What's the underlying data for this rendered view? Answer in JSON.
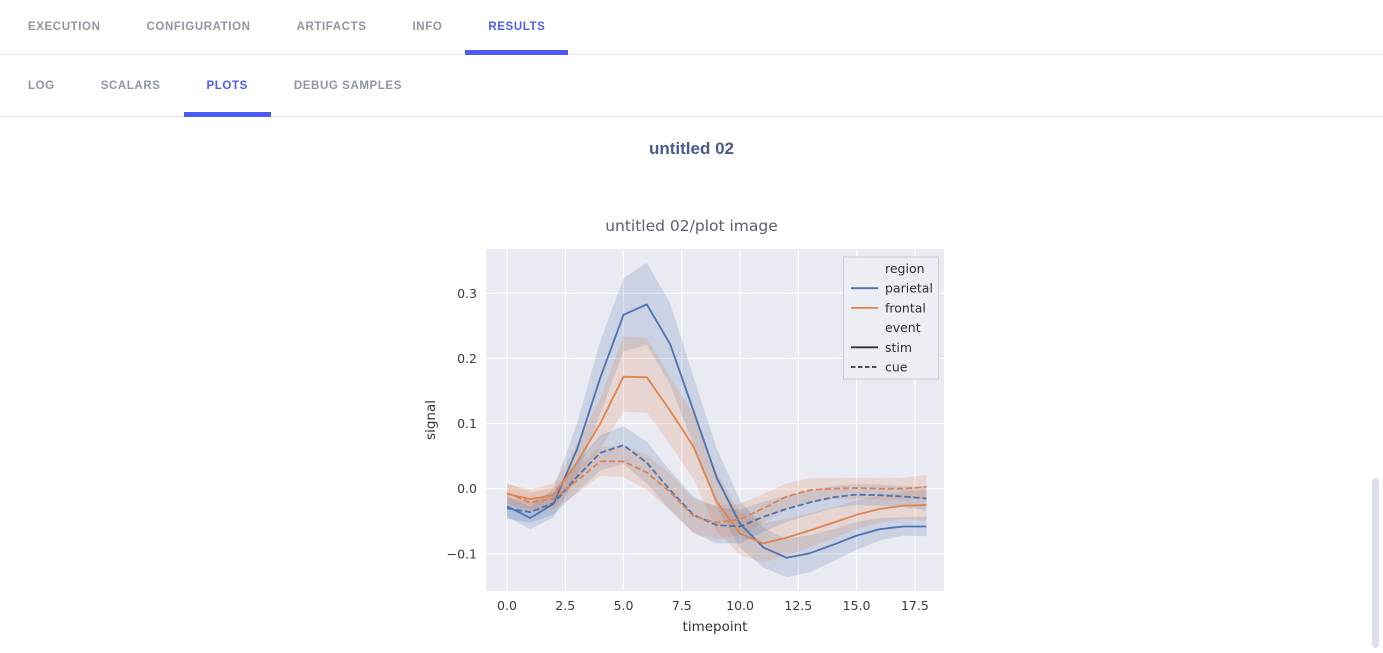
{
  "top_nav": {
    "active": "RESULTS",
    "tabs": [
      {
        "label": "EXECUTION"
      },
      {
        "label": "CONFIGURATION"
      },
      {
        "label": "ARTIFACTS"
      },
      {
        "label": "INFO"
      },
      {
        "label": "RESULTS"
      }
    ]
  },
  "sub_nav": {
    "active": "PLOTS",
    "tabs": [
      {
        "label": "LOG"
      },
      {
        "label": "SCALARS"
      },
      {
        "label": "PLOTS"
      },
      {
        "label": "DEBUG SAMPLES"
      }
    ]
  },
  "page": {
    "plot_group_title": "untitled 02"
  },
  "colors": {
    "accent": "#4c5df3",
    "inactive_tab": "#8f95a2",
    "group_title": "#4b5a8e",
    "chart_title": "#5a5f69",
    "tick_text": "#3a3a3a",
    "axis_text": "#333333",
    "plot_bg": "#eaeaf2",
    "grid": "#ffffff",
    "legend_bg": "#ededf4",
    "legend_border": "#c9cad3",
    "legend_text": "#2f2f2f",
    "blue": "#4c72b0",
    "orange": "#dd8452",
    "dark_line": "#333333",
    "scroll_thumb": "#dce0ee"
  },
  "chart_data": {
    "type": "line",
    "title": "untitled 02/plot image",
    "xlabel": "timepoint",
    "ylabel": "signal",
    "grid": true,
    "legend_position": "upper right",
    "band_alpha": 0.2,
    "xlim": [
      -0.9,
      18.75
    ],
    "ylim": [
      -0.157,
      0.368
    ],
    "xticks": [
      0,
      2.5,
      5,
      7.5,
      10,
      12.5,
      15,
      17.5
    ],
    "xtick_labels": [
      "0.0",
      "2.5",
      "5.0",
      "7.5",
      "10.0",
      "12.5",
      "15.0",
      "17.5"
    ],
    "yticks": [
      -0.1,
      0.0,
      0.1,
      0.2,
      0.3
    ],
    "ytick_labels": [
      "−0.1",
      "0.0",
      "0.1",
      "0.2",
      "0.3"
    ],
    "x": [
      0,
      1,
      2,
      3,
      4,
      5,
      6,
      7,
      8,
      9,
      10,
      11,
      12,
      13,
      14,
      15,
      16,
      17,
      18
    ],
    "series": [
      {
        "name": "parietal-stim",
        "region": "parietal",
        "event": "stim",
        "color": "#4c72b0",
        "dash": false,
        "values": [
          -0.027,
          -0.045,
          -0.023,
          0.06,
          0.17,
          0.267,
          0.283,
          0.222,
          0.12,
          0.017,
          -0.054,
          -0.09,
          -0.106,
          -0.099,
          -0.086,
          -0.072,
          -0.062,
          -0.058,
          -0.058
        ],
        "lo": [
          -0.043,
          -0.062,
          -0.044,
          0.02,
          0.115,
          0.211,
          0.221,
          0.16,
          0.068,
          -0.028,
          -0.091,
          -0.121,
          -0.136,
          -0.128,
          -0.111,
          -0.094,
          -0.079,
          -0.072,
          -0.073
        ],
        "hi": [
          -0.011,
          -0.028,
          0.0,
          0.1,
          0.226,
          0.323,
          0.347,
          0.285,
          0.172,
          0.062,
          -0.018,
          -0.06,
          -0.077,
          -0.071,
          -0.062,
          -0.051,
          -0.045,
          -0.044,
          -0.043
        ]
      },
      {
        "name": "frontal-stim",
        "region": "frontal",
        "event": "stim",
        "color": "#dd8452",
        "dash": false,
        "values": [
          -0.008,
          -0.016,
          -0.01,
          0.04,
          0.1,
          0.172,
          0.171,
          0.12,
          0.065,
          -0.02,
          -0.069,
          -0.084,
          -0.075,
          -0.064,
          -0.052,
          -0.04,
          -0.031,
          -0.026,
          -0.025
        ],
        "lo": [
          -0.023,
          -0.031,
          -0.028,
          0.012,
          0.062,
          0.118,
          0.117,
          0.068,
          0.015,
          -0.065,
          -0.102,
          -0.113,
          -0.103,
          -0.09,
          -0.076,
          -0.062,
          -0.052,
          -0.047,
          -0.049
        ],
        "hi": [
          0.007,
          -0.001,
          0.008,
          0.068,
          0.138,
          0.234,
          0.231,
          0.172,
          0.115,
          0.025,
          -0.036,
          -0.053,
          -0.046,
          -0.038,
          -0.028,
          -0.018,
          -0.01,
          -0.005,
          -0.001
        ]
      },
      {
        "name": "parietal-cue",
        "region": "parietal",
        "event": "cue",
        "color": "#4c72b0",
        "dash": true,
        "values": [
          -0.03,
          -0.036,
          -0.022,
          0.018,
          0.055,
          0.067,
          0.04,
          -0.002,
          -0.04,
          -0.056,
          -0.058,
          -0.043,
          -0.031,
          -0.021,
          -0.013,
          -0.009,
          -0.01,
          -0.012,
          -0.015
        ],
        "lo": [
          -0.046,
          -0.052,
          -0.04,
          -0.005,
          0.028,
          0.038,
          0.008,
          -0.032,
          -0.068,
          -0.084,
          -0.084,
          -0.066,
          -0.051,
          -0.04,
          -0.03,
          -0.025,
          -0.026,
          -0.028,
          -0.033
        ],
        "hi": [
          -0.014,
          -0.02,
          -0.004,
          0.041,
          0.082,
          0.096,
          0.072,
          0.028,
          -0.012,
          -0.028,
          -0.032,
          -0.02,
          -0.011,
          -0.002,
          0.004,
          0.007,
          0.006,
          0.004,
          0.003
        ]
      },
      {
        "name": "frontal-cue",
        "region": "frontal",
        "event": "cue",
        "color": "#dd8452",
        "dash": true,
        "values": [
          -0.007,
          -0.021,
          -0.015,
          0.012,
          0.042,
          0.042,
          0.025,
          -0.005,
          -0.042,
          -0.052,
          -0.047,
          -0.03,
          -0.012,
          -0.002,
          0.0,
          0.001,
          0.0,
          0.0,
          0.003
        ],
        "lo": [
          -0.023,
          -0.036,
          -0.032,
          -0.008,
          0.02,
          0.018,
          -0.002,
          -0.033,
          -0.068,
          -0.078,
          -0.071,
          -0.052,
          -0.032,
          -0.02,
          -0.016,
          -0.015,
          -0.016,
          -0.017,
          -0.015
        ],
        "hi": [
          0.009,
          -0.006,
          0.002,
          0.032,
          0.064,
          0.066,
          0.052,
          0.023,
          -0.016,
          -0.026,
          -0.023,
          -0.008,
          0.008,
          0.016,
          0.016,
          0.017,
          0.016,
          0.017,
          0.021
        ]
      }
    ],
    "legend": [
      {
        "type": "header",
        "label": "region"
      },
      {
        "type": "line",
        "label": "parietal",
        "color": "#4c72b0",
        "dash": false
      },
      {
        "type": "line",
        "label": "frontal",
        "color": "#dd8452",
        "dash": false
      },
      {
        "type": "header",
        "label": "event"
      },
      {
        "type": "line",
        "label": "stim",
        "color": "#333333",
        "dash": false
      },
      {
        "type": "line",
        "label": "cue",
        "color": "#333333",
        "dash": true
      }
    ]
  }
}
